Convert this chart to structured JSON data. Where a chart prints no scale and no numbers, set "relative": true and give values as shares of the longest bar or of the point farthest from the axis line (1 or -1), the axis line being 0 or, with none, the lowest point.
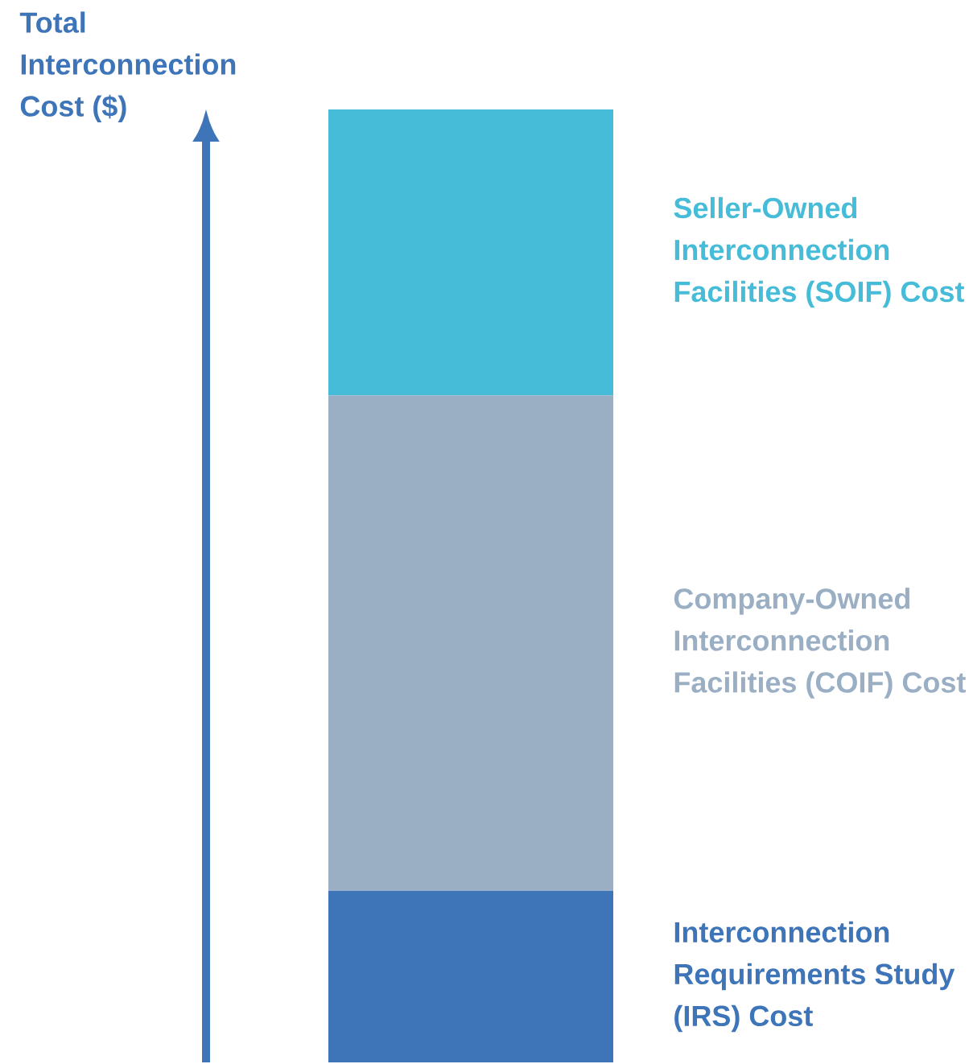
{
  "chart_data": {
    "type": "bar",
    "stacked": true,
    "relative": true,
    "ylabel": "Total Interconnection Cost ($)",
    "categories": [
      null
    ],
    "series": [
      {
        "name": "Interconnection Requirements Study (IRS) Cost",
        "color": "#3e75b8",
        "values": [
          0.18
        ]
      },
      {
        "name": "Company-Owned Interconnection Facilities (COIF) Cost",
        "color": "#9bafc4",
        "values": [
          0.52
        ]
      },
      {
        "name": "Seller-Owned Interconnection Facilities (SOIF) Cost",
        "color": "#47bcd8",
        "values": [
          0.3
        ]
      }
    ]
  }
}
